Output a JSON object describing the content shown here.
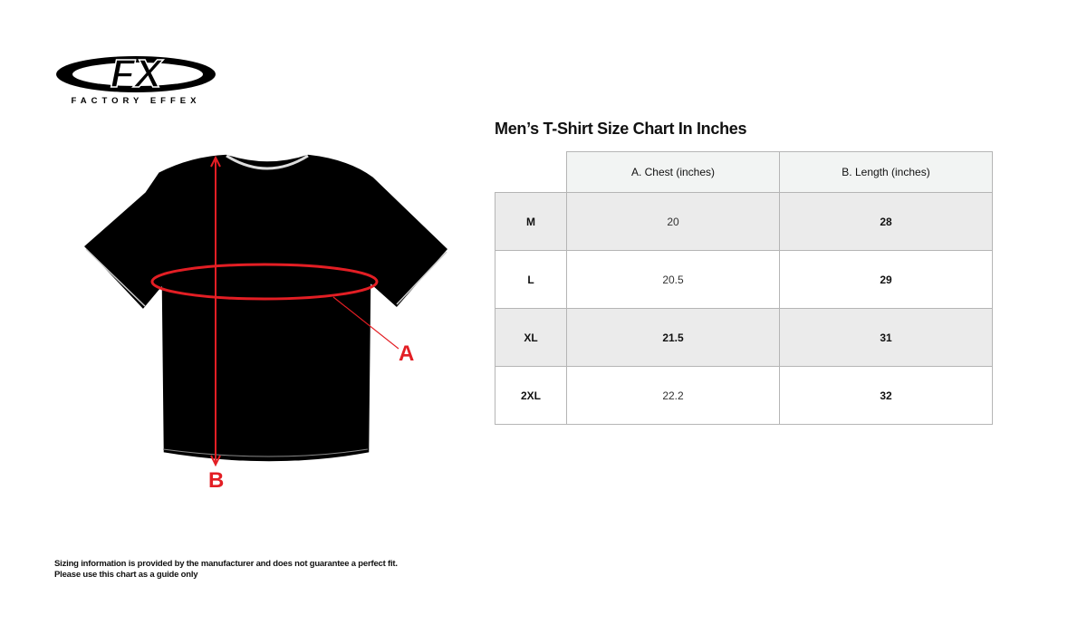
{
  "brand": {
    "logo_mark": "FX",
    "logo_text": "FACTORY EFFEX"
  },
  "title": "Men’s T-Shirt Size Chart In Inches",
  "diagram": {
    "label_a": "A",
    "label_b": "B",
    "accent_color": "#e31e24"
  },
  "table": {
    "headers": [
      "",
      "A. Chest (inches)",
      "B. Length (inches)"
    ],
    "rows": [
      {
        "size": "M",
        "chest": "20",
        "length": "28"
      },
      {
        "size": "L",
        "chest": "20.5",
        "length": "29"
      },
      {
        "size": "XL",
        "chest": "21.5",
        "length": "31"
      },
      {
        "size": "2XL",
        "chest": "22.2",
        "length": "32"
      }
    ]
  },
  "footer": {
    "line1": "Sizing information is provided by the manufacturer and does not guarantee a perfect fit.",
    "line2": "Please use this chart as a guide only"
  }
}
